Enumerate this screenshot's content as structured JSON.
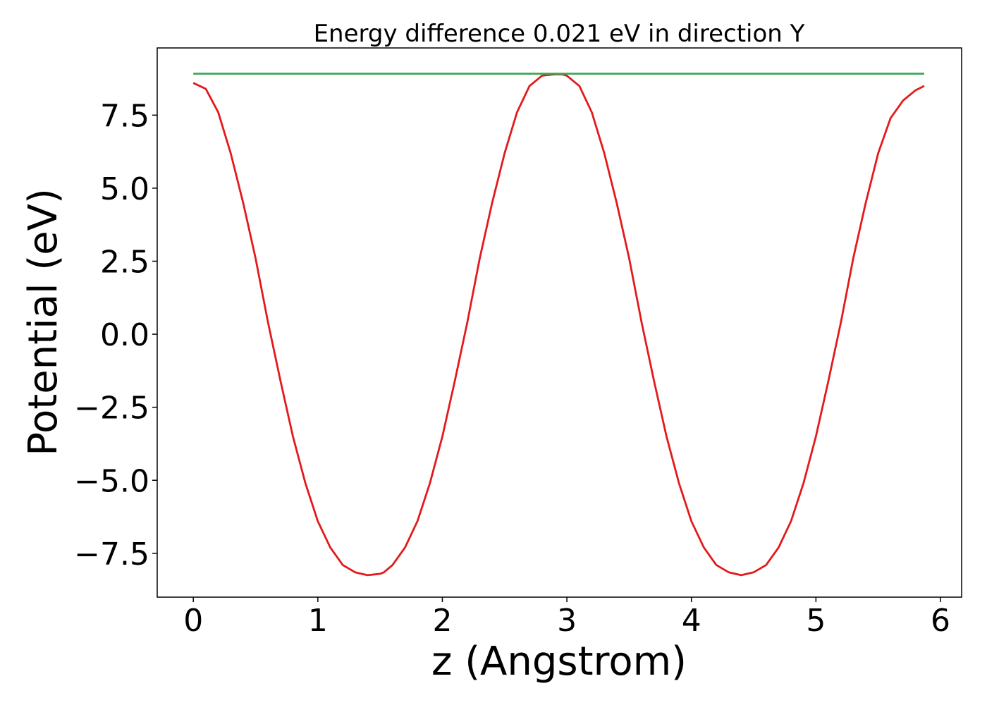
{
  "chart_data": {
    "type": "line",
    "title": "Energy difference 0.021 eV in direction Y",
    "xlabel": "z (Angstrom)",
    "ylabel": "Potential (eV)",
    "xlim": [
      -0.29,
      6.17
    ],
    "ylim": [
      -9.0,
      9.8
    ],
    "x_ticks": [
      0,
      1,
      2,
      3,
      4,
      5,
      6
    ],
    "x_tick_labels": [
      "0",
      "1",
      "2",
      "3",
      "4",
      "5",
      "6"
    ],
    "y_ticks": [
      -7.5,
      -5.0,
      -2.5,
      0.0,
      2.5,
      5.0,
      7.5
    ],
    "y_tick_labels": [
      "−7.5",
      "−5.0",
      "−2.5",
      "0.0",
      "2.5",
      "5.0",
      "7.5"
    ],
    "grid": false,
    "legend": "none",
    "series": [
      {
        "color": "#e31a1c",
        "x": [
          0,
          0.1,
          0.2,
          0.3,
          0.4,
          0.5,
          0.6,
          0.7,
          0.8,
          0.9,
          1.0,
          1.1,
          1.2,
          1.3,
          1.4,
          1.5,
          1.53,
          1.6,
          1.7,
          1.8,
          1.9,
          2.0,
          2.1,
          2.2,
          2.3,
          2.4,
          2.5,
          2.6,
          2.7,
          2.8,
          2.9,
          2.96,
          3.0,
          3.1,
          3.2,
          3.3,
          3.4,
          3.5,
          3.6,
          3.7,
          3.8,
          3.9,
          4.0,
          4.1,
          4.2,
          4.3,
          4.4,
          4.5,
          4.6,
          4.7,
          4.8,
          4.9,
          5.0,
          5.1,
          5.2,
          5.3,
          5.4,
          5.5,
          5.6,
          5.7,
          5.8,
          5.87
        ],
        "values": [
          8.6,
          8.4,
          7.6,
          6.2,
          4.5,
          2.6,
          0.4,
          -1.6,
          -3.5,
          -5.1,
          -6.4,
          -7.3,
          -7.9,
          -8.15,
          -8.25,
          -8.2,
          -8.15,
          -7.9,
          -7.3,
          -6.4,
          -5.1,
          -3.5,
          -1.6,
          0.4,
          2.6,
          4.5,
          6.2,
          7.6,
          8.5,
          8.85,
          8.9,
          8.9,
          8.85,
          8.5,
          7.6,
          6.2,
          4.5,
          2.6,
          0.4,
          -1.6,
          -3.5,
          -5.1,
          -6.4,
          -7.3,
          -7.9,
          -8.15,
          -8.25,
          -8.15,
          -7.9,
          -7.3,
          -6.4,
          -5.1,
          -3.5,
          -1.6,
          0.4,
          2.6,
          4.5,
          6.2,
          7.4,
          8.0,
          8.35,
          8.5
        ]
      },
      {
        "color": "#3aa655",
        "x": [
          0,
          5.87
        ],
        "values": [
          8.92,
          8.92
        ]
      }
    ]
  }
}
